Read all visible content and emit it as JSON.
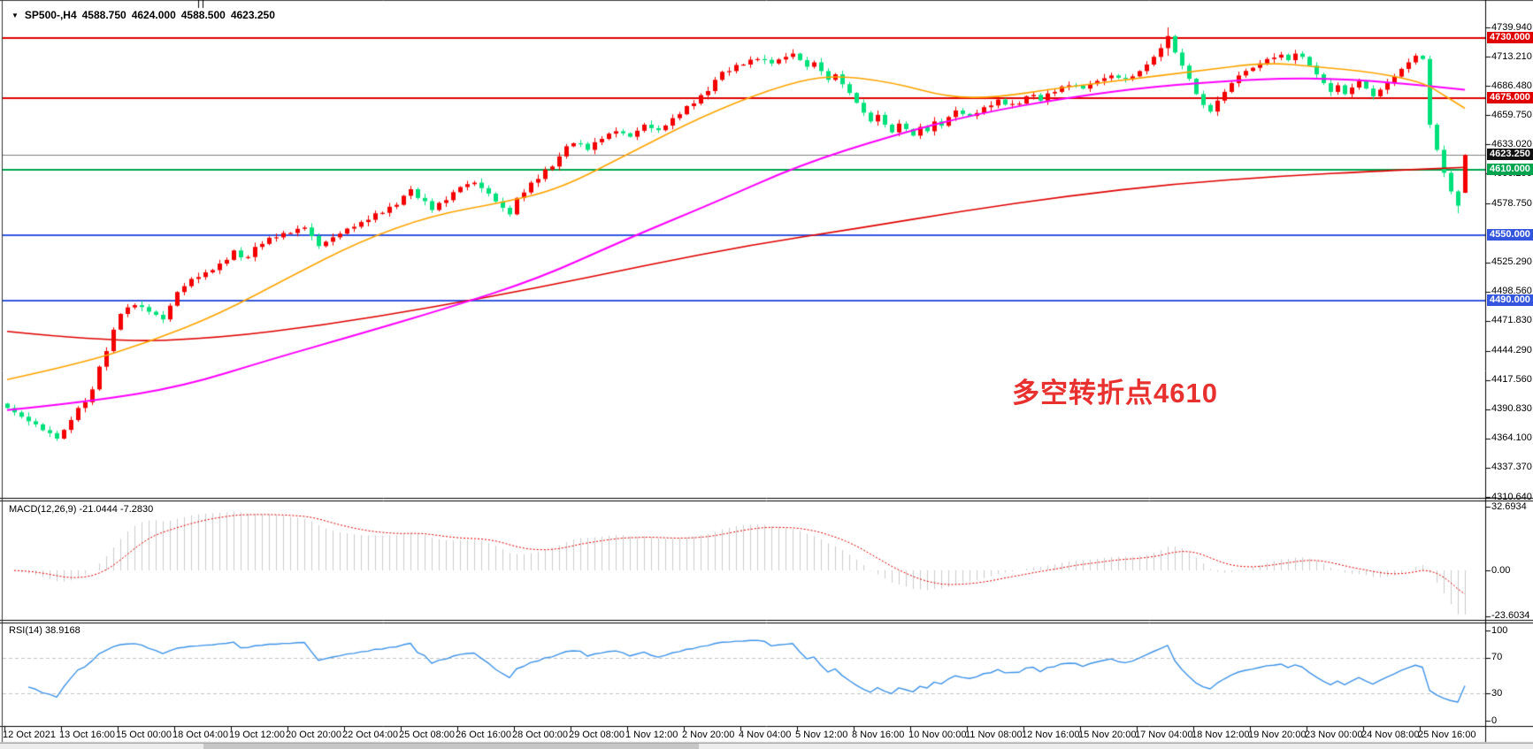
{
  "title": {
    "dropdown_icon": "▼",
    "symbol": "SP500-,H4",
    "open": "4588.750",
    "high": "4624.000",
    "low": "4588.500",
    "close": "4623.250"
  },
  "annotation": {
    "text": "多空转折点4610",
    "color": "#E8312F"
  },
  "macd": {
    "label": "MACD(12,26,9) -21.0444 -7.2830",
    "fast": 12,
    "slow": 26,
    "signal_period": 9,
    "value": -21.0444,
    "signal_value": -7.283,
    "axis_labels": [
      {
        "text": "32.6934",
        "value": 32.6934
      },
      {
        "text": "0.00",
        "value": 0
      },
      {
        "text": "-23.6034",
        "value": -23.6034
      }
    ],
    "histogram_color": "#CBCBCB",
    "signal_color": "#E00000"
  },
  "rsi": {
    "label": "RSI(14) 38.9168",
    "period": 14,
    "value": 38.9168,
    "axis_labels": [
      {
        "text": "100",
        "value": 100
      },
      {
        "text": "70",
        "value": 70
      },
      {
        "text": "30",
        "value": 30
      },
      {
        "text": "0",
        "value": 0
      }
    ],
    "guide_levels": [
      70,
      30
    ],
    "line_color": "#3E93E8",
    "guide_color": "#C3C3C3"
  },
  "price_axis": {
    "labels": [
      {
        "text": "4739.940",
        "value": 4739.94,
        "bg": null
      },
      {
        "text": "4730.000",
        "value": 4730.0,
        "bg": "#DF0000"
      },
      {
        "text": "4713.210",
        "value": 4713.21,
        "bg": null
      },
      {
        "text": "4686.480",
        "value": 4686.48,
        "bg": null
      },
      {
        "text": "4675.000",
        "value": 4675.0,
        "bg": "#DF0000"
      },
      {
        "text": "4659.750",
        "value": 4659.75,
        "bg": null
      },
      {
        "text": "4633.020",
        "value": 4633.02,
        "bg": null
      },
      {
        "text": "4623.250",
        "value": 4623.25,
        "bg": "#111111"
      },
      {
        "text": "4610.000",
        "value": 4610.0,
        "bg": "#00A44E"
      },
      {
        "text": "4606.290",
        "value": 4606.29,
        "bg": null
      },
      {
        "text": "4578.750",
        "value": 4578.75,
        "bg": null
      },
      {
        "text": "4550.000",
        "value": 4550.0,
        "bg": "#3456DE"
      },
      {
        "text": "4525.290",
        "value": 4525.29,
        "bg": null
      },
      {
        "text": "4498.560",
        "value": 4498.56,
        "bg": null
      },
      {
        "text": "4490.000",
        "value": 4490.0,
        "bg": "#3456DE"
      },
      {
        "text": "4471.830",
        "value": 4471.83,
        "bg": null
      },
      {
        "text": "4444.290",
        "value": 4444.29,
        "bg": null
      },
      {
        "text": "4417.560",
        "value": 4417.56,
        "bg": null
      },
      {
        "text": "4390.830",
        "value": 4390.83,
        "bg": null
      },
      {
        "text": "4364.100",
        "value": 4364.1,
        "bg": null
      },
      {
        "text": "4337.370",
        "value": 4337.37,
        "bg": null
      },
      {
        "text": "4310.640",
        "value": 4310.64,
        "bg": null
      }
    ]
  },
  "time_axis": {
    "labels": [
      "12 Oct 2021",
      "13 Oct 16:00",
      "15 Oct 00:00",
      "18 Oct 04:00",
      "19 Oct 12:00",
      "20 Oct 20:00",
      "22 Oct 04:00",
      "25 Oct 08:00",
      "26 Oct 16:00",
      "28 Oct 00:00",
      "29 Oct 08:00",
      "1 Nov 12:00",
      "2 Nov 20:00",
      "4 Nov 04:00",
      "5 Nov 12:00",
      "8 Nov 16:00",
      "10 Nov 00:00",
      "11 Nov 08:00",
      "12 Nov 16:00",
      "15 Nov 20:00",
      "17 Nov 04:00",
      "18 Nov 12:00",
      "19 Nov 20:00",
      "23 Nov 00:00",
      "24 Nov 08:00",
      "25 Nov 16:00"
    ]
  },
  "chart_data": {
    "type": "candlestick",
    "symbol": "SP500-",
    "timeframe": "H4",
    "title": "SP500-,H4 4588.750 4624.000 4588.500 4623.250",
    "x_range": [
      "12 Oct 2021",
      "25 Nov 16:00"
    ],
    "y_range": [
      4310.64,
      4739.94
    ],
    "bars_total": 207,
    "grid": false,
    "up_color": "#F40000",
    "down_color": "#00E17B",
    "last_bar": {
      "open": 4588.75,
      "high": 4624.0,
      "low": 4588.5,
      "close": 4623.25
    },
    "close_keyframes": [
      [
        0,
        4392
      ],
      [
        2,
        4384
      ],
      [
        4,
        4377
      ],
      [
        6,
        4369
      ],
      [
        7,
        4364
      ],
      [
        8,
        4372
      ],
      [
        9,
        4381
      ],
      [
        10,
        4392
      ],
      [
        12,
        4409
      ],
      [
        14,
        4444
      ],
      [
        16,
        4478
      ],
      [
        18,
        4486
      ],
      [
        20,
        4480
      ],
      [
        22,
        4473
      ],
      [
        24,
        4498
      ],
      [
        26,
        4510
      ],
      [
        28,
        4516
      ],
      [
        30,
        4524
      ],
      [
        32,
        4536
      ],
      [
        34,
        4530
      ],
      [
        36,
        4542
      ],
      [
        38,
        4548
      ],
      [
        40,
        4552
      ],
      [
        42,
        4557
      ],
      [
        44,
        4540
      ],
      [
        46,
        4548
      ],
      [
        48,
        4556
      ],
      [
        50,
        4562
      ],
      [
        52,
        4570
      ],
      [
        54,
        4576
      ],
      [
        56,
        4586
      ],
      [
        57,
        4592
      ],
      [
        58,
        4584
      ],
      [
        60,
        4573
      ],
      [
        62,
        4582
      ],
      [
        64,
        4594
      ],
      [
        66,
        4598
      ],
      [
        68,
        4588
      ],
      [
        70,
        4575
      ],
      [
        71,
        4569
      ],
      [
        72,
        4584
      ],
      [
        74,
        4598
      ],
      [
        76,
        4610
      ],
      [
        78,
        4622
      ],
      [
        80,
        4634
      ],
      [
        82,
        4628
      ],
      [
        84,
        4638
      ],
      [
        86,
        4645
      ],
      [
        88,
        4640
      ],
      [
        90,
        4651
      ],
      [
        92,
        4646
      ],
      [
        94,
        4657
      ],
      [
        96,
        4668
      ],
      [
        98,
        4678
      ],
      [
        100,
        4692
      ],
      [
        102,
        4700
      ],
      [
        104,
        4706
      ],
      [
        106,
        4711
      ],
      [
        108,
        4707
      ],
      [
        110,
        4713
      ],
      [
        111,
        4716
      ],
      [
        112,
        4710
      ],
      [
        113,
        4704
      ],
      [
        114,
        4708
      ],
      [
        115,
        4700
      ],
      [
        116,
        4692
      ],
      [
        117,
        4697
      ],
      [
        118,
        4688
      ],
      [
        119,
        4680
      ],
      [
        120,
        4671
      ],
      [
        121,
        4662
      ],
      [
        122,
        4654
      ],
      [
        123,
        4660
      ],
      [
        124,
        4651
      ],
      [
        125,
        4644
      ],
      [
        126,
        4652
      ],
      [
        127,
        4647
      ],
      [
        128,
        4641
      ],
      [
        129,
        4649
      ],
      [
        130,
        4645
      ],
      [
        131,
        4654
      ],
      [
        132,
        4650
      ],
      [
        133,
        4658
      ],
      [
        134,
        4664
      ],
      [
        136,
        4659
      ],
      [
        138,
        4667
      ],
      [
        140,
        4674
      ],
      [
        142,
        4670
      ],
      [
        144,
        4677
      ],
      [
        146,
        4673
      ],
      [
        148,
        4681
      ],
      [
        150,
        4687
      ],
      [
        152,
        4684
      ],
      [
        154,
        4691
      ],
      [
        156,
        4696
      ],
      [
        158,
        4693
      ],
      [
        160,
        4700
      ],
      [
        161,
        4706
      ],
      [
        162,
        4713
      ],
      [
        163,
        4721
      ],
      [
        164,
        4732
      ],
      [
        165,
        4717
      ],
      [
        166,
        4705
      ],
      [
        167,
        4693
      ],
      [
        168,
        4679
      ],
      [
        169,
        4669
      ],
      [
        170,
        4663
      ],
      [
        171,
        4673
      ],
      [
        172,
        4681
      ],
      [
        173,
        4689
      ],
      [
        174,
        4696
      ],
      [
        176,
        4703
      ],
      [
        178,
        4711
      ],
      [
        180,
        4715
      ],
      [
        181,
        4710
      ],
      [
        182,
        4716
      ],
      [
        183,
        4713
      ],
      [
        184,
        4705
      ],
      [
        185,
        4697
      ],
      [
        186,
        4689
      ],
      [
        187,
        4681
      ],
      [
        188,
        4687
      ],
      [
        189,
        4679
      ],
      [
        190,
        4685
      ],
      [
        191,
        4691
      ],
      [
        192,
        4684
      ],
      [
        193,
        4677
      ],
      [
        194,
        4683
      ],
      [
        195,
        4689
      ],
      [
        196,
        4695
      ],
      [
        197,
        4702
      ],
      [
        198,
        4708
      ],
      [
        199,
        4714
      ],
      [
        200,
        4711
      ],
      [
        201,
        4651
      ],
      [
        202,
        4628
      ],
      [
        203,
        4607
      ],
      [
        204,
        4590
      ],
      [
        205,
        4577
      ],
      [
        206,
        4623.25
      ]
    ],
    "wick_overrides": [
      [
        111,
        4720,
        null
      ],
      [
        164,
        4739.9,
        4714
      ],
      [
        205,
        null,
        4570
      ]
    ],
    "horizontal_levels": [
      {
        "value": 4730.0,
        "color": "#DF0000",
        "width": 2
      },
      {
        "value": 4675.0,
        "color": "#DF0000",
        "width": 2
      },
      {
        "value": 4623.25,
        "color": "#808080",
        "width": 1
      },
      {
        "value": 4610.0,
        "color": "#00A44E",
        "width": 2
      },
      {
        "value": 4550.0,
        "color": "#3456DE",
        "width": 2
      },
      {
        "value": 4490.0,
        "color": "#3456DE",
        "width": 2
      }
    ],
    "moving_averages": [
      {
        "name": "ma-fast-orange",
        "color": "#FFA400",
        "width": 1.6,
        "points": [
          [
            0,
            4418
          ],
          [
            10,
            4432
          ],
          [
            20,
            4452
          ],
          [
            30,
            4478
          ],
          [
            40,
            4512
          ],
          [
            50,
            4545
          ],
          [
            60,
            4568
          ],
          [
            70,
            4580
          ],
          [
            78,
            4592
          ],
          [
            88,
            4625
          ],
          [
            98,
            4658
          ],
          [
            108,
            4684
          ],
          [
            116,
            4697
          ],
          [
            125,
            4690
          ],
          [
            133,
            4676
          ],
          [
            140,
            4676
          ],
          [
            148,
            4684
          ],
          [
            158,
            4692
          ],
          [
            168,
            4700
          ],
          [
            178,
            4708
          ],
          [
            185,
            4704
          ],
          [
            193,
            4699
          ],
          [
            200,
            4690
          ],
          [
            203,
            4678
          ],
          [
            206,
            4666
          ]
        ]
      },
      {
        "name": "ma-mid-magenta",
        "color": "#FF00FF",
        "width": 2,
        "points": [
          [
            0,
            4390
          ],
          [
            12,
            4398
          ],
          [
            25,
            4412
          ],
          [
            37,
            4436
          ],
          [
            50,
            4460
          ],
          [
            62,
            4483
          ],
          [
            75,
            4510
          ],
          [
            87,
            4545
          ],
          [
            100,
            4580
          ],
          [
            112,
            4614
          ],
          [
            125,
            4641
          ],
          [
            137,
            4661
          ],
          [
            150,
            4676
          ],
          [
            162,
            4686
          ],
          [
            175,
            4692
          ],
          [
            185,
            4694
          ],
          [
            195,
            4690
          ],
          [
            206,
            4683
          ]
        ]
      },
      {
        "name": "ma-slow-red",
        "color": "#DF0000",
        "width": 1.6,
        "points": [
          [
            0,
            4462
          ],
          [
            15,
            4452
          ],
          [
            30,
            4456
          ],
          [
            45,
            4468
          ],
          [
            60,
            4484
          ],
          [
            75,
            4502
          ],
          [
            90,
            4522
          ],
          [
            105,
            4541
          ],
          [
            120,
            4556
          ],
          [
            135,
            4572
          ],
          [
            150,
            4586
          ],
          [
            165,
            4597
          ],
          [
            180,
            4604
          ],
          [
            195,
            4609
          ],
          [
            206,
            4612
          ]
        ]
      }
    ]
  }
}
